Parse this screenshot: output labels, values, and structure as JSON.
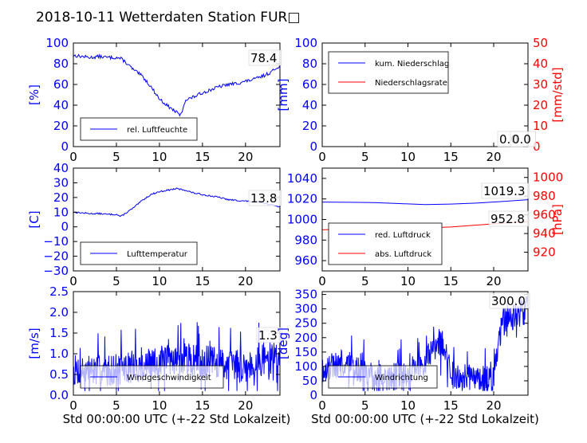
{
  "figure_title": "2018-10-11 Wetterdaten Station FUR□",
  "colors": {
    "left_axis": "#0000ff",
    "right_axis": "#ff0000",
    "line_blue": "#0000ff",
    "line_red": "#ff0000"
  },
  "chart_data": [
    {
      "id": "humidity",
      "type": "line",
      "xlim": [
        0,
        24
      ],
      "ylim": [
        0,
        100
      ],
      "xticks": [
        "0",
        "5",
        "10",
        "15",
        "20"
      ],
      "xtick_values": [
        0,
        5,
        10,
        15,
        20
      ],
      "yticks": [
        "0",
        "20",
        "40",
        "60",
        "80",
        "100"
      ],
      "ytick_values": [
        0,
        20,
        40,
        60,
        80,
        100
      ],
      "ylabel": "[%]",
      "legend_placement": "bottom-left",
      "last_value_label": "78.4",
      "series": [
        {
          "name": "rel. Luftfeuchte",
          "color": "#0000ff",
          "noise": 1.6,
          "x": [
            0,
            1,
            2,
            3,
            4,
            5,
            5.5,
            6,
            7,
            8,
            9,
            10,
            11,
            12,
            12.5,
            13,
            14,
            15,
            16,
            17,
            18,
            19,
            20,
            21,
            22,
            23,
            24
          ],
          "y": [
            88,
            87,
            86,
            87,
            86,
            86,
            85,
            82,
            74,
            68,
            58,
            46,
            39,
            33,
            30,
            45,
            48,
            52,
            55,
            58,
            60,
            61,
            63,
            65,
            68,
            72,
            78.4
          ]
        }
      ]
    },
    {
      "id": "precip",
      "type": "line",
      "xlim": [
        0,
        24
      ],
      "ylim": [
        0,
        100
      ],
      "y2lim": [
        0,
        50
      ],
      "xticks": [
        "0",
        "5",
        "10",
        "15",
        "20"
      ],
      "xtick_values": [
        0,
        5,
        10,
        15,
        20
      ],
      "yticks": [
        "0",
        "20",
        "40",
        "60",
        "80",
        "100"
      ],
      "ytick_values": [
        0,
        20,
        40,
        60,
        80,
        100
      ],
      "y2ticks": [
        "0",
        "10",
        "20",
        "30",
        "40",
        "50"
      ],
      "y2tick_values": [
        0,
        10,
        20,
        30,
        40,
        50
      ],
      "ylabel": "[mm]",
      "y2label": "[mm/std]",
      "legend_placement": "top-left",
      "last_value_label": "0.0",
      "last_value_label_2": "0.0",
      "series": [
        {
          "name": "kum. Niederschlag",
          "color": "#0000ff",
          "axis": "left",
          "x": [
            0,
            24
          ],
          "y": [
            0,
            0
          ]
        },
        {
          "name": "Niederschlagsrate",
          "color": "#ff0000",
          "axis": "right",
          "x": [
            0,
            24
          ],
          "y": [
            0,
            0
          ]
        }
      ]
    },
    {
      "id": "temperature",
      "type": "line",
      "xlim": [
        0,
        24
      ],
      "ylim": [
        -30,
        40
      ],
      "xticks": [
        "0",
        "5",
        "10",
        "15",
        "20"
      ],
      "xtick_values": [
        0,
        5,
        10,
        15,
        20
      ],
      "yticks": [
        "−30",
        "−20",
        "−10",
        "0",
        "10",
        "20",
        "30",
        "40"
      ],
      "ytick_values": [
        -30,
        -20,
        -10,
        0,
        10,
        20,
        30,
        40
      ],
      "ylabel": "[C]",
      "legend_placement": "bottom-left",
      "last_value_label": "13.8",
      "series": [
        {
          "name": "Lufttemperatur",
          "color": "#0000ff",
          "noise": 0.5,
          "x": [
            0,
            1,
            2,
            3,
            4,
            5,
            5.5,
            6,
            7,
            8,
            9,
            10,
            11,
            12,
            12.5,
            13,
            14,
            15,
            16,
            17,
            18,
            19,
            20,
            21,
            22,
            23,
            24
          ],
          "y": [
            10,
            9.5,
            9,
            9,
            8.5,
            8.5,
            7,
            9,
            13,
            18,
            22,
            24,
            25,
            26,
            25.5,
            25,
            23,
            22,
            21,
            20,
            18.5,
            18,
            17.5,
            17,
            16.5,
            15,
            13.8
          ]
        }
      ]
    },
    {
      "id": "pressure",
      "type": "line",
      "xlim": [
        0,
        24
      ],
      "ylim": [
        950,
        1050
      ],
      "y2lim": [
        900,
        1010
      ],
      "xticks": [
        "0",
        "5",
        "10",
        "15",
        "20"
      ],
      "xtick_values": [
        0,
        5,
        10,
        15,
        20
      ],
      "yticks": [
        "960",
        "980",
        "1000",
        "1020",
        "1040"
      ],
      "ytick_values": [
        960,
        980,
        1000,
        1020,
        1040
      ],
      "y2ticks": [
        "920",
        "940",
        "960",
        "980",
        "1000"
      ],
      "y2tick_values": [
        920,
        940,
        960,
        980,
        1000
      ],
      "ylabel": "",
      "y2label": "[hPa]",
      "legend_placement": "bottom-left",
      "last_value_label": "1019.3",
      "last_value_label_2": "952.8",
      "series": [
        {
          "name": "red. Luftdruck",
          "color": "#0000ff",
          "axis": "left",
          "x": [
            0,
            3,
            6,
            9,
            12,
            15,
            18,
            21,
            24
          ],
          "y": [
            1017,
            1016.8,
            1016.5,
            1015.5,
            1014.5,
            1015,
            1016,
            1017.5,
            1019.3
          ]
        },
        {
          "name": "abs. Luftdruck",
          "color": "#ff0000",
          "axis": "right",
          "x": [
            0,
            3,
            6,
            9,
            12,
            15,
            18,
            21,
            24
          ],
          "y": [
            944,
            944.5,
            945,
            945.5,
            946,
            947,
            949,
            951,
            952.8
          ]
        }
      ]
    },
    {
      "id": "windspeed",
      "type": "line",
      "xlim": [
        0,
        24
      ],
      "ylim": [
        0,
        2.5
      ],
      "xticks": [
        "0",
        "5",
        "10",
        "15",
        "20"
      ],
      "xtick_values": [
        0,
        5,
        10,
        15,
        20
      ],
      "yticks": [
        "0.0",
        "0.5",
        "1.0",
        "1.5",
        "2.0",
        "2.5"
      ],
      "ytick_values": [
        0,
        0.5,
        1,
        1.5,
        2,
        2.5
      ],
      "ylabel": "[m/s]",
      "xlabel": "Std 00:00:00 UTC (+-22 Std Lokalzeit)",
      "legend_placement": "bottom-right",
      "last_value_label": "1.3",
      "series": [
        {
          "name": "Windgeschwindigkeit",
          "color": "#0000ff",
          "style": "spiky",
          "base": [
            [
              0,
              0.6
            ],
            [
              4,
              0.6
            ],
            [
              8,
              0.7
            ],
            [
              12,
              0.9
            ],
            [
              16,
              0.8
            ],
            [
              20,
              0.7
            ],
            [
              24,
              1.0
            ]
          ],
          "amp": 0.55,
          "min": 0.1,
          "max": 2.2,
          "count": 520,
          "seed": 7,
          "end_value": 1.3
        }
      ]
    },
    {
      "id": "winddir",
      "type": "line",
      "xlim": [
        0,
        24
      ],
      "ylim": [
        0,
        360
      ],
      "xticks": [
        "0",
        "5",
        "10",
        "15",
        "20"
      ],
      "xtick_values": [
        0,
        5,
        10,
        15,
        20
      ],
      "yticks": [
        "0",
        "50",
        "100",
        "150",
        "200",
        "250",
        "300",
        "350"
      ],
      "ytick_values": [
        0,
        50,
        100,
        150,
        200,
        250,
        300,
        350
      ],
      "ylabel": "[deg]",
      "xlabel": "Std 00:00:00 UTC (+-22 Std Lokalzeit)",
      "legend_placement": "bottom-left",
      "last_value_label": "300.0",
      "series": [
        {
          "name": "Windrichtung",
          "color": "#0000ff",
          "style": "spiky",
          "base": [
            [
              0,
              90
            ],
            [
              2,
              110
            ],
            [
              4,
              90
            ],
            [
              6,
              60
            ],
            [
              8,
              60
            ],
            [
              10,
              80
            ],
            [
              12,
              120
            ],
            [
              13,
              170
            ],
            [
              14,
              190
            ],
            [
              15,
              70
            ],
            [
              17,
              60
            ],
            [
              19,
              55
            ],
            [
              20,
              60
            ],
            [
              21,
              250
            ],
            [
              24,
              300
            ]
          ],
          "amp": 70,
          "min": 15,
          "max": 345,
          "count": 520,
          "seed": 19,
          "end_value": 300
        }
      ]
    }
  ]
}
